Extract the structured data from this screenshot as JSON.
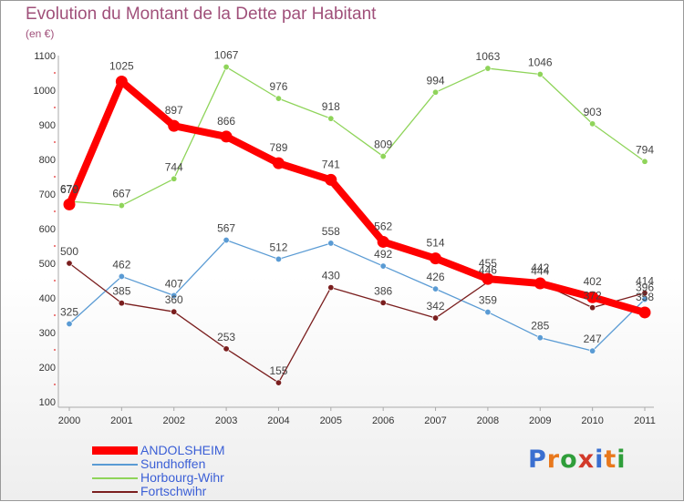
{
  "chart_data": {
    "type": "line",
    "title": "Evolution du Montant de la Dette par Habitant",
    "unit_label": "(en €)",
    "x": [
      "2000",
      "2001",
      "2002",
      "2003",
      "2004",
      "2005",
      "2006",
      "2007",
      "2008",
      "2009",
      "2010",
      "2011"
    ],
    "ylim": [
      100,
      1100
    ],
    "yticks": [
      100,
      200,
      300,
      400,
      500,
      600,
      700,
      800,
      900,
      1000,
      1100
    ],
    "grid": false,
    "legend_position": "bottom-left",
    "series": [
      {
        "name": "ANDOLSHEIM",
        "color": "#ff0000",
        "emphasis": true,
        "values": [
          670,
          1025,
          897,
          866,
          789,
          741,
          562,
          514,
          455,
          442,
          402,
          358
        ]
      },
      {
        "name": "Sundhoffen",
        "color": "#5a9bd4",
        "values": [
          325,
          462,
          407,
          567,
          512,
          558,
          492,
          426,
          359,
          285,
          247,
          396
        ]
      },
      {
        "name": "Horbourg-Wihr",
        "color": "#8fd45a",
        "values": [
          679,
          667,
          744,
          1067,
          976,
          918,
          809,
          994,
          1063,
          1046,
          903,
          794
        ]
      },
      {
        "name": "Fortschwihr",
        "color": "#7a1e1e",
        "values": [
          500,
          385,
          360,
          253,
          155,
          430,
          386,
          342,
          446,
          444,
          372,
          414
        ]
      }
    ]
  },
  "logo": {
    "text": "Proxiti",
    "letter_colors": [
      "#3a6fd0",
      "#e8781c",
      "#2f9e3a",
      "#d23a2a",
      "#3a6fd0",
      "#e8781c",
      "#2f9e3a"
    ]
  }
}
